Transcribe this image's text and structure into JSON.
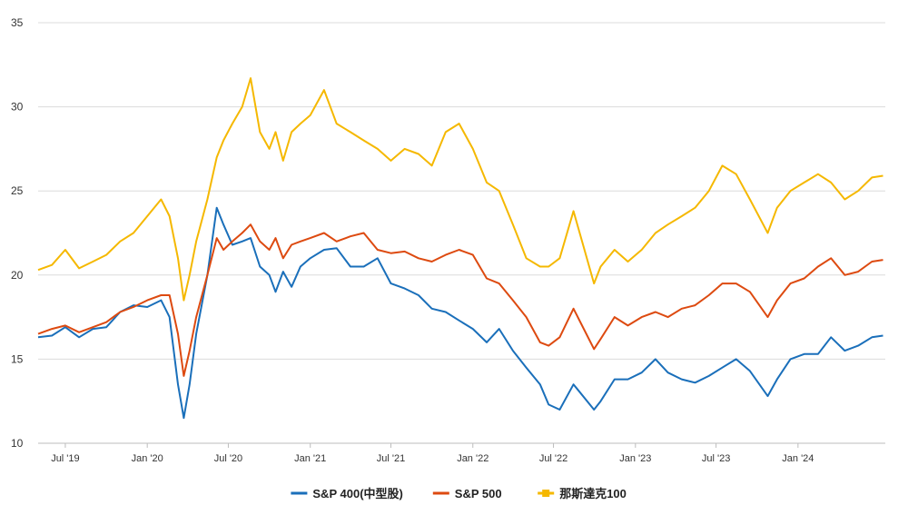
{
  "chart_data": {
    "type": "line",
    "title": "",
    "xlabel": "",
    "ylabel": "",
    "ylim": [
      10,
      35
    ],
    "y_ticks": [
      10,
      15,
      20,
      25,
      30,
      35
    ],
    "x_range": [
      "2019-05-01",
      "2024-07-15"
    ],
    "x_ticks": [
      {
        "date": "2019-07-01",
        "label": "Jul '19"
      },
      {
        "date": "2020-01-01",
        "label": "Jan '20"
      },
      {
        "date": "2020-07-01",
        "label": "Jul '20"
      },
      {
        "date": "2021-01-01",
        "label": "Jan '21"
      },
      {
        "date": "2021-07-01",
        "label": "Jul '21"
      },
      {
        "date": "2022-01-01",
        "label": "Jan '22"
      },
      {
        "date": "2022-07-01",
        "label": "Jul '22"
      },
      {
        "date": "2023-01-01",
        "label": "Jan '23"
      },
      {
        "date": "2023-07-01",
        "label": "Jul '23"
      },
      {
        "date": "2024-01-01",
        "label": "Jan '24"
      }
    ],
    "grid": "horizontal",
    "legend_position": "bottom-center",
    "series": [
      {
        "name": "S&P 400(中型股)",
        "color": "#1a6fba",
        "marker": "line",
        "points": [
          [
            "2019-05-01",
            16.3
          ],
          [
            "2019-06-01",
            16.4
          ],
          [
            "2019-07-01",
            16.9
          ],
          [
            "2019-08-01",
            16.3
          ],
          [
            "2019-09-01",
            16.8
          ],
          [
            "2019-10-01",
            16.9
          ],
          [
            "2019-11-01",
            17.8
          ],
          [
            "2019-12-01",
            18.2
          ],
          [
            "2020-01-01",
            18.1
          ],
          [
            "2020-02-01",
            18.5
          ],
          [
            "2020-02-20",
            17.5
          ],
          [
            "2020-03-10",
            13.5
          ],
          [
            "2020-03-23",
            11.5
          ],
          [
            "2020-04-05",
            13.5
          ],
          [
            "2020-04-20",
            16.5
          ],
          [
            "2020-05-15",
            20.0
          ],
          [
            "2020-06-05",
            24.0
          ],
          [
            "2020-06-20",
            23.0
          ],
          [
            "2020-07-10",
            21.8
          ],
          [
            "2020-08-01",
            22.0
          ],
          [
            "2020-08-20",
            22.2
          ],
          [
            "2020-09-10",
            20.5
          ],
          [
            "2020-10-01",
            20.0
          ],
          [
            "2020-10-15",
            19.0
          ],
          [
            "2020-11-01",
            20.2
          ],
          [
            "2020-11-20",
            19.3
          ],
          [
            "2020-12-10",
            20.5
          ],
          [
            "2021-01-01",
            21.0
          ],
          [
            "2021-02-01",
            21.5
          ],
          [
            "2021-03-01",
            21.6
          ],
          [
            "2021-04-01",
            20.5
          ],
          [
            "2021-05-01",
            20.5
          ],
          [
            "2021-06-01",
            21.0
          ],
          [
            "2021-07-01",
            19.5
          ],
          [
            "2021-08-01",
            19.2
          ],
          [
            "2021-09-01",
            18.8
          ],
          [
            "2021-10-01",
            18.0
          ],
          [
            "2021-11-01",
            17.8
          ],
          [
            "2021-12-01",
            17.3
          ],
          [
            "2022-01-01",
            16.8
          ],
          [
            "2022-02-01",
            16.0
          ],
          [
            "2022-03-01",
            16.8
          ],
          [
            "2022-04-01",
            15.5
          ],
          [
            "2022-05-01",
            14.5
          ],
          [
            "2022-06-01",
            13.5
          ],
          [
            "2022-06-20",
            12.3
          ],
          [
            "2022-07-15",
            12.0
          ],
          [
            "2022-08-15",
            13.5
          ],
          [
            "2022-09-30",
            12.0
          ],
          [
            "2022-10-15",
            12.5
          ],
          [
            "2022-11-15",
            13.8
          ],
          [
            "2022-12-15",
            13.8
          ],
          [
            "2023-01-15",
            14.2
          ],
          [
            "2023-02-15",
            15.0
          ],
          [
            "2023-03-15",
            14.2
          ],
          [
            "2023-04-15",
            13.8
          ],
          [
            "2023-05-15",
            13.6
          ],
          [
            "2023-06-15",
            14.0
          ],
          [
            "2023-07-15",
            14.5
          ],
          [
            "2023-08-15",
            15.0
          ],
          [
            "2023-09-15",
            14.3
          ],
          [
            "2023-10-25",
            12.8
          ],
          [
            "2023-11-15",
            13.8
          ],
          [
            "2023-12-15",
            15.0
          ],
          [
            "2024-01-15",
            15.3
          ],
          [
            "2024-02-15",
            15.3
          ],
          [
            "2024-03-15",
            16.3
          ],
          [
            "2024-04-15",
            15.5
          ],
          [
            "2024-05-15",
            15.8
          ],
          [
            "2024-06-15",
            16.3
          ],
          [
            "2024-07-10",
            16.4
          ]
        ]
      },
      {
        "name": "S&P 500",
        "color": "#dd4a10",
        "marker": "line",
        "points": [
          [
            "2019-05-01",
            16.5
          ],
          [
            "2019-06-01",
            16.8
          ],
          [
            "2019-07-01",
            17.0
          ],
          [
            "2019-08-01",
            16.6
          ],
          [
            "2019-09-01",
            16.9
          ],
          [
            "2019-10-01",
            17.2
          ],
          [
            "2019-11-01",
            17.8
          ],
          [
            "2019-12-01",
            18.1
          ],
          [
            "2020-01-01",
            18.5
          ],
          [
            "2020-02-01",
            18.8
          ],
          [
            "2020-02-20",
            18.8
          ],
          [
            "2020-03-10",
            16.5
          ],
          [
            "2020-03-23",
            14.0
          ],
          [
            "2020-04-05",
            15.5
          ],
          [
            "2020-04-20",
            17.5
          ],
          [
            "2020-05-15",
            20.0
          ],
          [
            "2020-06-05",
            22.2
          ],
          [
            "2020-06-20",
            21.5
          ],
          [
            "2020-07-10",
            22.0
          ],
          [
            "2020-08-01",
            22.5
          ],
          [
            "2020-08-20",
            23.0
          ],
          [
            "2020-09-10",
            22.0
          ],
          [
            "2020-10-01",
            21.5
          ],
          [
            "2020-10-15",
            22.2
          ],
          [
            "2020-11-01",
            21.0
          ],
          [
            "2020-11-20",
            21.8
          ],
          [
            "2020-12-10",
            22.0
          ],
          [
            "2021-01-01",
            22.2
          ],
          [
            "2021-02-01",
            22.5
          ],
          [
            "2021-03-01",
            22.0
          ],
          [
            "2021-04-01",
            22.3
          ],
          [
            "2021-05-01",
            22.5
          ],
          [
            "2021-06-01",
            21.5
          ],
          [
            "2021-07-01",
            21.3
          ],
          [
            "2021-08-01",
            21.4
          ],
          [
            "2021-09-01",
            21.0
          ],
          [
            "2021-10-01",
            20.8
          ],
          [
            "2021-11-01",
            21.2
          ],
          [
            "2021-12-01",
            21.5
          ],
          [
            "2022-01-01",
            21.2
          ],
          [
            "2022-02-01",
            19.8
          ],
          [
            "2022-03-01",
            19.5
          ],
          [
            "2022-04-01",
            18.5
          ],
          [
            "2022-05-01",
            17.5
          ],
          [
            "2022-06-01",
            16.0
          ],
          [
            "2022-06-20",
            15.8
          ],
          [
            "2022-07-15",
            16.3
          ],
          [
            "2022-08-15",
            18.0
          ],
          [
            "2022-09-30",
            15.6
          ],
          [
            "2022-10-15",
            16.2
          ],
          [
            "2022-11-15",
            17.5
          ],
          [
            "2022-12-15",
            17.0
          ],
          [
            "2023-01-15",
            17.5
          ],
          [
            "2023-02-15",
            17.8
          ],
          [
            "2023-03-15",
            17.5
          ],
          [
            "2023-04-15",
            18.0
          ],
          [
            "2023-05-15",
            18.2
          ],
          [
            "2023-06-15",
            18.8
          ],
          [
            "2023-07-15",
            19.5
          ],
          [
            "2023-08-15",
            19.5
          ],
          [
            "2023-09-15",
            19.0
          ],
          [
            "2023-10-25",
            17.5
          ],
          [
            "2023-11-15",
            18.5
          ],
          [
            "2023-12-15",
            19.5
          ],
          [
            "2024-01-15",
            19.8
          ],
          [
            "2024-02-15",
            20.5
          ],
          [
            "2024-03-15",
            21.0
          ],
          [
            "2024-04-15",
            20.0
          ],
          [
            "2024-05-15",
            20.2
          ],
          [
            "2024-06-15",
            20.8
          ],
          [
            "2024-07-10",
            20.9
          ]
        ]
      },
      {
        "name": "那斯達克100",
        "color": "#f5b800",
        "marker": "square",
        "points": [
          [
            "2019-05-01",
            20.3
          ],
          [
            "2019-06-01",
            20.6
          ],
          [
            "2019-07-01",
            21.5
          ],
          [
            "2019-08-01",
            20.4
          ],
          [
            "2019-09-01",
            20.8
          ],
          [
            "2019-10-01",
            21.2
          ],
          [
            "2019-11-01",
            22.0
          ],
          [
            "2019-12-01",
            22.5
          ],
          [
            "2020-01-01",
            23.5
          ],
          [
            "2020-02-01",
            24.5
          ],
          [
            "2020-02-20",
            23.5
          ],
          [
            "2020-03-10",
            21.0
          ],
          [
            "2020-03-23",
            18.5
          ],
          [
            "2020-04-05",
            20.0
          ],
          [
            "2020-04-20",
            22.0
          ],
          [
            "2020-05-15",
            24.5
          ],
          [
            "2020-06-05",
            27.0
          ],
          [
            "2020-06-20",
            28.0
          ],
          [
            "2020-07-10",
            29.0
          ],
          [
            "2020-08-01",
            30.0
          ],
          [
            "2020-08-20",
            31.7
          ],
          [
            "2020-09-10",
            28.5
          ],
          [
            "2020-10-01",
            27.5
          ],
          [
            "2020-10-15",
            28.5
          ],
          [
            "2020-11-01",
            26.8
          ],
          [
            "2020-11-20",
            28.5
          ],
          [
            "2020-12-10",
            29.0
          ],
          [
            "2021-01-01",
            29.5
          ],
          [
            "2021-02-01",
            31.0
          ],
          [
            "2021-03-01",
            29.0
          ],
          [
            "2021-04-01",
            28.5
          ],
          [
            "2021-05-01",
            28.0
          ],
          [
            "2021-06-01",
            27.5
          ],
          [
            "2021-07-01",
            26.8
          ],
          [
            "2021-08-01",
            27.5
          ],
          [
            "2021-09-01",
            27.2
          ],
          [
            "2021-10-01",
            26.5
          ],
          [
            "2021-11-01",
            28.5
          ],
          [
            "2021-12-01",
            29.0
          ],
          [
            "2022-01-01",
            27.5
          ],
          [
            "2022-02-01",
            25.5
          ],
          [
            "2022-03-01",
            25.0
          ],
          [
            "2022-04-01",
            23.0
          ],
          [
            "2022-05-01",
            21.0
          ],
          [
            "2022-06-01",
            20.5
          ],
          [
            "2022-06-20",
            20.5
          ],
          [
            "2022-07-15",
            21.0
          ],
          [
            "2022-08-15",
            23.8
          ],
          [
            "2022-09-30",
            19.5
          ],
          [
            "2022-10-15",
            20.5
          ],
          [
            "2022-11-15",
            21.5
          ],
          [
            "2022-12-15",
            20.8
          ],
          [
            "2023-01-15",
            21.5
          ],
          [
            "2023-02-15",
            22.5
          ],
          [
            "2023-03-15",
            23.0
          ],
          [
            "2023-04-15",
            23.5
          ],
          [
            "2023-05-15",
            24.0
          ],
          [
            "2023-06-15",
            25.0
          ],
          [
            "2023-07-15",
            26.5
          ],
          [
            "2023-08-15",
            26.0
          ],
          [
            "2023-09-15",
            24.5
          ],
          [
            "2023-10-25",
            22.5
          ],
          [
            "2023-11-15",
            24.0
          ],
          [
            "2023-12-15",
            25.0
          ],
          [
            "2024-01-15",
            25.5
          ],
          [
            "2024-02-15",
            26.0
          ],
          [
            "2024-03-15",
            25.5
          ],
          [
            "2024-04-15",
            24.5
          ],
          [
            "2024-05-15",
            25.0
          ],
          [
            "2024-06-15",
            25.8
          ],
          [
            "2024-07-10",
            25.9
          ]
        ]
      }
    ]
  }
}
